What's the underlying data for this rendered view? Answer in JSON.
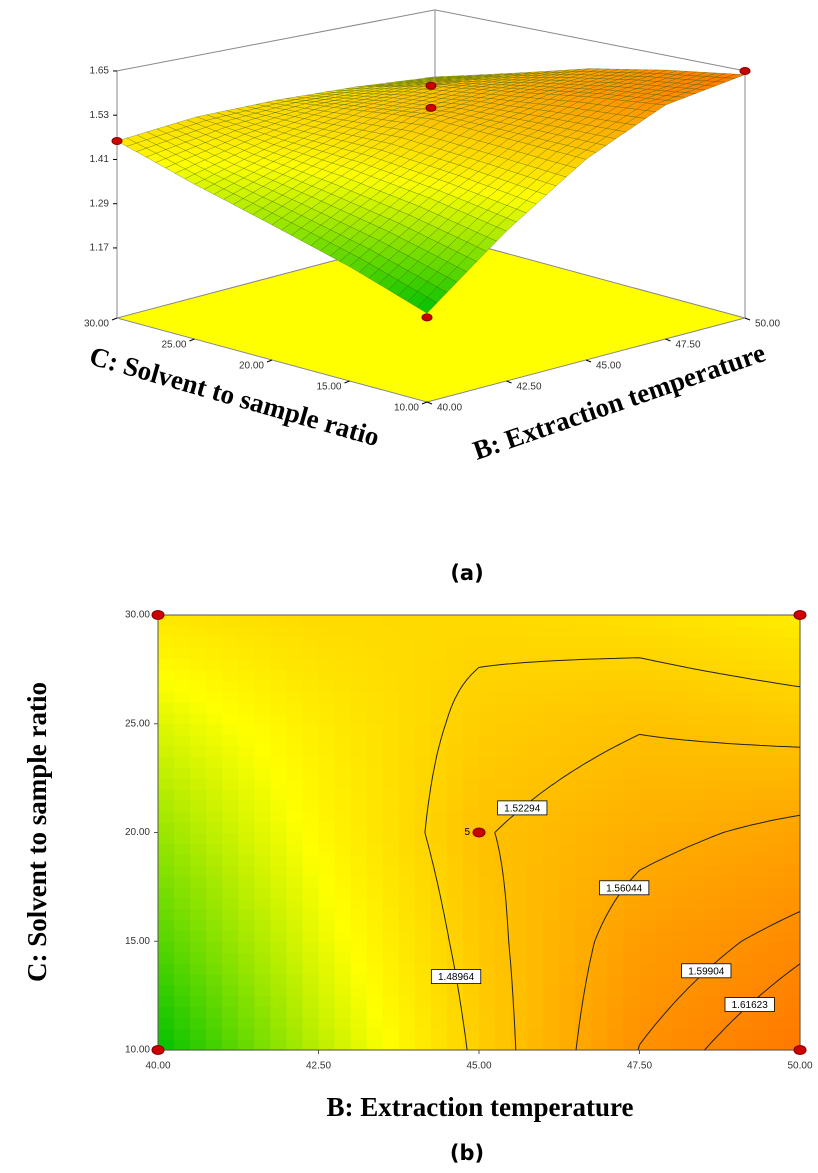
{
  "chart_data": [
    {
      "type": "surface3d",
      "x_label": "B: Extraction temperature",
      "y_label": "C: Solvent to sample ratio",
      "panel_label": "(a)",
      "x": [
        40,
        42.5,
        45,
        47.5,
        50
      ],
      "y": [
        10,
        15,
        20,
        25,
        30
      ],
      "z": [
        [
          1.2,
          1.36,
          1.5,
          1.6,
          1.64
        ],
        [
          1.27,
          1.4,
          1.51,
          1.58,
          1.61
        ],
        [
          1.33,
          1.43,
          1.52,
          1.55,
          1.57
        ],
        [
          1.39,
          1.45,
          1.5,
          1.52,
          1.51
        ],
        [
          1.46,
          1.48,
          1.48,
          1.47,
          1.45
        ]
      ],
      "xlim": [
        40,
        50
      ],
      "ylim": [
        10,
        30
      ],
      "zlim": [
        0.98,
        1.65
      ],
      "xticks": [
        {
          "value": 40,
          "label": "40.00"
        },
        {
          "value": 42.5,
          "label": "42.50"
        },
        {
          "value": 45,
          "label": "45.00"
        },
        {
          "value": 47.5,
          "label": "47.50"
        },
        {
          "value": 50,
          "label": "50.00"
        }
      ],
      "yticks": [
        {
          "value": 10,
          "label": "10.00"
        },
        {
          "value": 15,
          "label": "15.00"
        },
        {
          "value": 20,
          "label": "20.00"
        },
        {
          "value": 25,
          "label": "25.00"
        },
        {
          "value": 30,
          "label": "30.00"
        }
      ],
      "zticks": [
        1.17,
        1.29,
        1.41,
        1.53,
        1.65
      ],
      "colormap": [
        "#00c000",
        "#ffff00",
        "#ff7800"
      ],
      "floor_color": "#ffff00",
      "point_color": "#cc0000",
      "points": [
        {
          "x": 40,
          "y": 30,
          "z": 1.46
        },
        {
          "x": 40,
          "y": 10,
          "z": 1.19
        },
        {
          "x": 50,
          "y": 10,
          "z": 1.65
        },
        {
          "x": 45,
          "y": 20,
          "z": 1.61
        },
        {
          "x": 45,
          "y": 20,
          "z": 1.55
        }
      ]
    },
    {
      "type": "contour",
      "x_label": "B: Extraction temperature",
      "y_label": "C: Solvent to sample ratio",
      "panel_label": "(b)",
      "x": [
        40,
        42.5,
        45,
        47.5,
        50
      ],
      "y": [
        10,
        15,
        20,
        25,
        30
      ],
      "z": [
        [
          1.2,
          1.36,
          1.5,
          1.6,
          1.64
        ],
        [
          1.27,
          1.4,
          1.51,
          1.58,
          1.61
        ],
        [
          1.33,
          1.43,
          1.52,
          1.55,
          1.57
        ],
        [
          1.39,
          1.45,
          1.5,
          1.52,
          1.51
        ],
        [
          1.46,
          1.48,
          1.48,
          1.47,
          1.45
        ]
      ],
      "levels": [
        1.48964,
        1.52294,
        1.56044,
        1.59904,
        1.61623
      ],
      "xlim": [
        40,
        50
      ],
      "ylim": [
        10,
        30
      ],
      "xticks": [
        {
          "value": 40,
          "label": "40.00"
        },
        {
          "value": 42.5,
          "label": "42.50"
        },
        {
          "value": 45,
          "label": "45.00"
        },
        {
          "value": 47.5,
          "label": "47.50"
        },
        {
          "value": 50,
          "label": "50.00"
        }
      ],
      "yticks": [
        {
          "value": 10,
          "label": "10.00"
        },
        {
          "value": 15,
          "label": "15.00"
        },
        {
          "value": 20,
          "label": "20.00"
        },
        {
          "value": 25,
          "label": "25.00"
        },
        {
          "value": 30,
          "label": "30.00"
        }
      ],
      "colormap": [
        "#00c000",
        "#ffff00",
        "#ff7800"
      ],
      "point_color": "#cc0000",
      "points": [
        {
          "x": 40,
          "y": 10
        },
        {
          "x": 40,
          "y": 30
        },
        {
          "x": 50,
          "y": 10
        },
        {
          "x": 50,
          "y": 30
        },
        {
          "x": 45,
          "y": 20,
          "label": "5"
        }
      ]
    }
  ]
}
